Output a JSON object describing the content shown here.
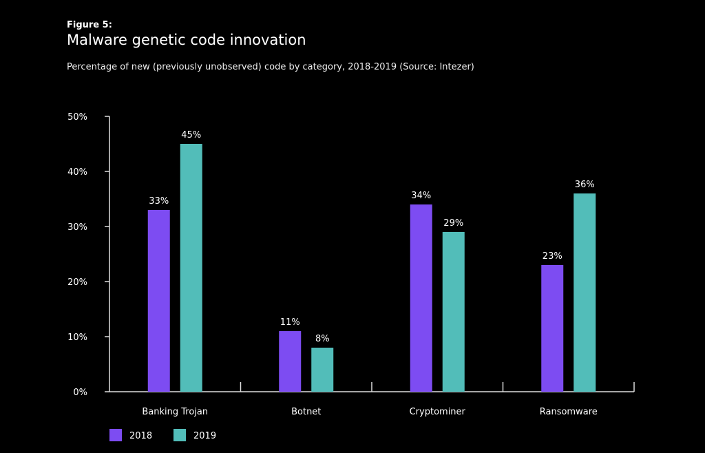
{
  "figure_label": "Figure 5:",
  "chart_data": {
    "type": "bar",
    "title": "Malware genetic code innovation",
    "subtitle": "Percentage of new (previously unobserved) code by category, 2018-2019 (Source: Intezer)",
    "xlabel": "",
    "ylabel": "",
    "categories": [
      "Banking Trojan",
      "Botnet",
      "Cryptominer",
      "Ransomware"
    ],
    "series": [
      {
        "name": "2018",
        "color": "#7d4cf2",
        "values": [
          33,
          11,
          34,
          23
        ]
      },
      {
        "name": "2019",
        "color": "#52bdb9",
        "values": [
          45,
          8,
          29,
          36
        ]
      }
    ],
    "ylim": [
      0,
      50
    ],
    "yticks": [
      0,
      10,
      20,
      30,
      40,
      50
    ],
    "ytick_labels": [
      "0%",
      "10%",
      "20%",
      "30%",
      "40%",
      "50%"
    ],
    "data_labels": [
      [
        "33%",
        "11%",
        "34%",
        "23%"
      ],
      [
        "45%",
        "8%",
        "29%",
        "36%"
      ]
    ],
    "grid": false,
    "legend_position": "bottom-left",
    "background": "#000000"
  }
}
